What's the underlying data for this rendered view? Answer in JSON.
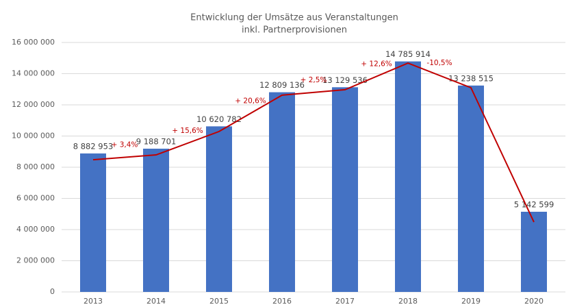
{
  "chart_data": {
    "type": "bar",
    "title": "Entwicklung der Umsätze aus Veranstaltungen",
    "subtitle": "inkl. Partnerprovisionen",
    "categories": [
      "2013",
      "2014",
      "2015",
      "2016",
      "2017",
      "2018",
      "2019",
      "2020"
    ],
    "series": [
      {
        "type": "bar",
        "color": "#4472c4",
        "values": [
          8882953,
          9188701,
          10620782,
          12809136,
          13129536,
          14785914,
          13238515,
          5142599
        ],
        "value_labels": [
          "8 882 953",
          "9 188 701",
          "10 620 782",
          "12 809 136",
          "13 129 536",
          "14 785 914",
          "13 238 515",
          "5 142 599"
        ]
      },
      {
        "type": "line",
        "color": "#c00000",
        "values": [
          8480000,
          8790000,
          10290000,
          12620000,
          12970000,
          14680000,
          13100000,
          4480000
        ]
      }
    ],
    "annotations": [
      "+ 3,4%",
      "+ 15,6%",
      "+ 20,6%",
      "+ 2,5%",
      "+ 12,6%",
      "-10,5%"
    ],
    "ylim": [
      0,
      16000000
    ],
    "yticks": [
      0,
      {
        "value": 2000000,
        "label": "2 000 000"
      },
      {
        "value": 4000000,
        "label": "4 000 000"
      },
      {
        "value": 6000000,
        "label": "6 000 000"
      },
      {
        "value": 8000000,
        "label": "8 000 000"
      },
      {
        "value": 10000000,
        "label": "10 000 000"
      },
      {
        "value": 12000000,
        "label": "12 000 000"
      },
      {
        "value": 14000000,
        "label": "14 000 000"
      },
      {
        "value": 16000000,
        "label": "16 000 000"
      }
    ],
    "grid": true
  }
}
